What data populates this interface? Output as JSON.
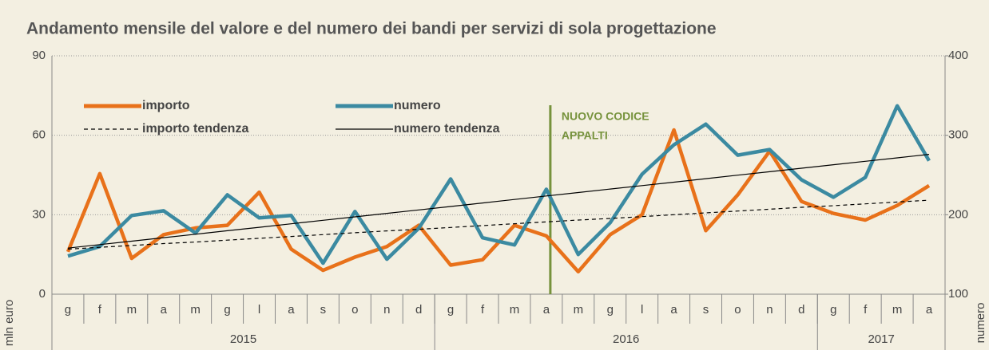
{
  "chart_data": {
    "type": "line",
    "title": "Andamento mensile del valore e del numero dei bandi per servizi di sola progettazione",
    "ylabel": "mln euro",
    "y2label": "numero",
    "categories": [
      "g",
      "f",
      "m",
      "a",
      "m",
      "g",
      "l",
      "a",
      "s",
      "o",
      "n",
      "d",
      "g",
      "f",
      "m",
      "a",
      "m",
      "g",
      "l",
      "a",
      "s",
      "o",
      "n",
      "d",
      "g",
      "f",
      "m",
      "a"
    ],
    "groups": [
      {
        "name": "2015",
        "count": 12
      },
      {
        "name": "2016",
        "count": 12
      },
      {
        "name": "2017",
        "count": 4
      }
    ],
    "ylim": [
      0,
      90
    ],
    "yticks": [
      0,
      30,
      60,
      90
    ],
    "y2lim": [
      100,
      400
    ],
    "y2ticks": [
      100,
      200,
      300,
      400
    ],
    "grid": true,
    "series": [
      {
        "name": "importo",
        "color": "#e8711a",
        "axis": "y",
        "values": [
          16,
          45.5,
          13.5,
          22.5,
          25,
          26,
          38.5,
          17,
          9,
          14,
          18,
          26,
          11,
          13,
          26,
          22,
          8.5,
          22.5,
          30,
          62,
          24,
          37.5,
          54,
          35,
          30.5,
          28,
          33.5,
          41
        ]
      },
      {
        "name": "numero",
        "color": "#3b8aa1",
        "axis": "y2",
        "values": [
          148,
          160,
          199,
          205,
          177,
          225,
          196,
          199,
          139,
          204,
          144,
          183,
          245,
          171,
          162,
          232,
          150,
          190,
          251,
          288,
          314,
          275,
          282,
          244,
          222,
          247,
          337,
          268
        ]
      },
      {
        "name": "importo tendenza",
        "color": "#000000",
        "axis": "y",
        "dashed": true,
        "values": [
          17,
          17.7,
          18.4,
          19.1,
          19.7,
          20.4,
          21.1,
          21.8,
          22.5,
          23.2,
          23.9,
          24.5,
          25.2,
          25.9,
          26.6,
          27.3,
          28,
          28.6,
          29.3,
          30,
          30.7,
          31.4,
          32.1,
          32.8,
          33.4,
          34.1,
          34.8,
          35.5
        ]
      },
      {
        "name": "numero tendenza",
        "color": "#000000",
        "axis": "y2",
        "values": [
          158,
          162.4,
          166.7,
          171.1,
          175.5,
          179.9,
          184.2,
          188.6,
          193,
          197.3,
          201.7,
          206.1,
          210.4,
          214.8,
          219.2,
          223.6,
          227.9,
          232.3,
          236.7,
          241,
          245.4,
          249.8,
          254.1,
          258.5,
          262.9,
          267.3,
          271.6,
          276
        ]
      }
    ],
    "annotation": {
      "lines": [
        "NUOVO CODICE",
        "APPALTI"
      ],
      "category": 15,
      "color": "#76923c"
    }
  }
}
